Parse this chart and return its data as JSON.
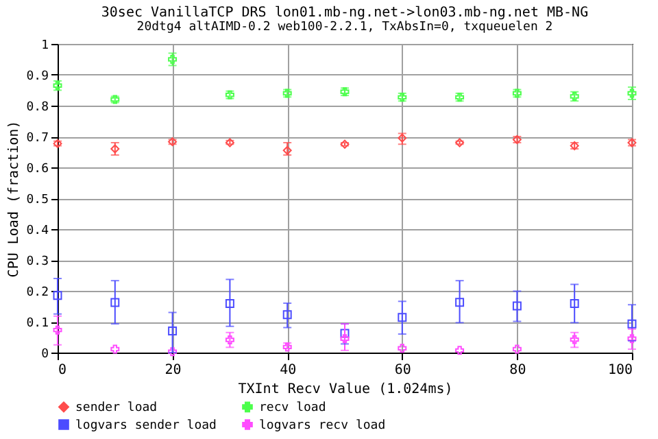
{
  "chart_data": {
    "type": "scatter",
    "title": "30sec VanillaTCP DRS lon01.mb-ng.net->lon03.mb-ng.net MB-NG",
    "subtitle": "20dtg4 altAIMD-0.2 web100-2.2.1, TxAbsIn=0, txqueuelen 2",
    "xlabel": "TXInt Recv Value (1.024ms)",
    "ylabel": "CPU Load (fraction)",
    "x": [
      0,
      10,
      20,
      30,
      40,
      50,
      60,
      70,
      80,
      90,
      100
    ],
    "xlim": [
      0,
      100
    ],
    "xticks": [
      0,
      20,
      40,
      60,
      80,
      100
    ],
    "ylim": [
      0,
      1
    ],
    "yticks": [
      0,
      0.1,
      0.2,
      0.3,
      0.4,
      0.5,
      0.6,
      0.7,
      0.8,
      0.9,
      1
    ],
    "grid": true,
    "legend": "bottom",
    "series": [
      {
        "name": "sender load",
        "color": "#ff4c4c",
        "marker": "diamond",
        "values": [
          0.677,
          0.66,
          0.683,
          0.68,
          0.655,
          0.675,
          0.695,
          0.68,
          0.69,
          0.67,
          0.68
        ],
        "errors": [
          [
            0.67,
            0.685
          ],
          [
            0.64,
            0.68
          ],
          [
            0.675,
            0.69
          ],
          [
            0.675,
            0.687
          ],
          [
            0.64,
            0.68
          ],
          [
            0.67,
            0.68
          ],
          [
            0.675,
            0.71
          ],
          [
            0.675,
            0.685
          ],
          [
            0.68,
            0.7
          ],
          [
            0.66,
            0.68
          ],
          [
            0.67,
            0.69
          ]
        ]
      },
      {
        "name": "recv load",
        "color": "#4cff4c",
        "marker": "cross",
        "values": [
          0.865,
          0.82,
          0.95,
          0.835,
          0.84,
          0.845,
          0.827,
          0.827,
          0.84,
          0.83,
          0.84
        ],
        "errors": [
          [
            0.85,
            0.88
          ],
          [
            0.81,
            0.83
          ],
          [
            0.93,
            0.97
          ],
          [
            0.823,
            0.847
          ],
          [
            0.828,
            0.852
          ],
          [
            0.833,
            0.857
          ],
          [
            0.815,
            0.84
          ],
          [
            0.815,
            0.84
          ],
          [
            0.828,
            0.852
          ],
          [
            0.815,
            0.845
          ],
          [
            0.82,
            0.86
          ]
        ]
      },
      {
        "name": "logvars sender load",
        "color": "#4c4cff",
        "marker": "square",
        "values": [
          0.185,
          0.162,
          0.07,
          0.159,
          0.123,
          0.062,
          0.114,
          0.163,
          0.151,
          0.159,
          0.093
        ],
        "errors": [
          [
            0.125,
            0.24
          ],
          [
            0.093,
            0.233
          ],
          [
            0,
            0.13
          ],
          [
            0.085,
            0.237
          ],
          [
            0.081,
            0.16
          ],
          [
            0.028,
            0.093
          ],
          [
            0.06,
            0.166
          ],
          [
            0.097,
            0.233
          ],
          [
            0.101,
            0.199
          ],
          [
            0.097,
            0.221
          ],
          [
            0.038,
            0.155
          ]
        ]
      },
      {
        "name": "logvars recv load",
        "color": "#ff4cff",
        "marker": "cross",
        "values": [
          0.073,
          0.011,
          0.003,
          0.041,
          0.018,
          0.045,
          0.014,
          0.007,
          0.011,
          0.042,
          0.045
        ],
        "errors": [
          [
            0.025,
            0.118
          ],
          null,
          null,
          [
            0.017,
            0.065
          ],
          [
            0.013,
            0.031
          ],
          [
            0.007,
            0.093
          ],
          null,
          null,
          null,
          [
            0.017,
            0.065
          ],
          [
            0.011,
            0.076
          ]
        ]
      }
    ]
  }
}
